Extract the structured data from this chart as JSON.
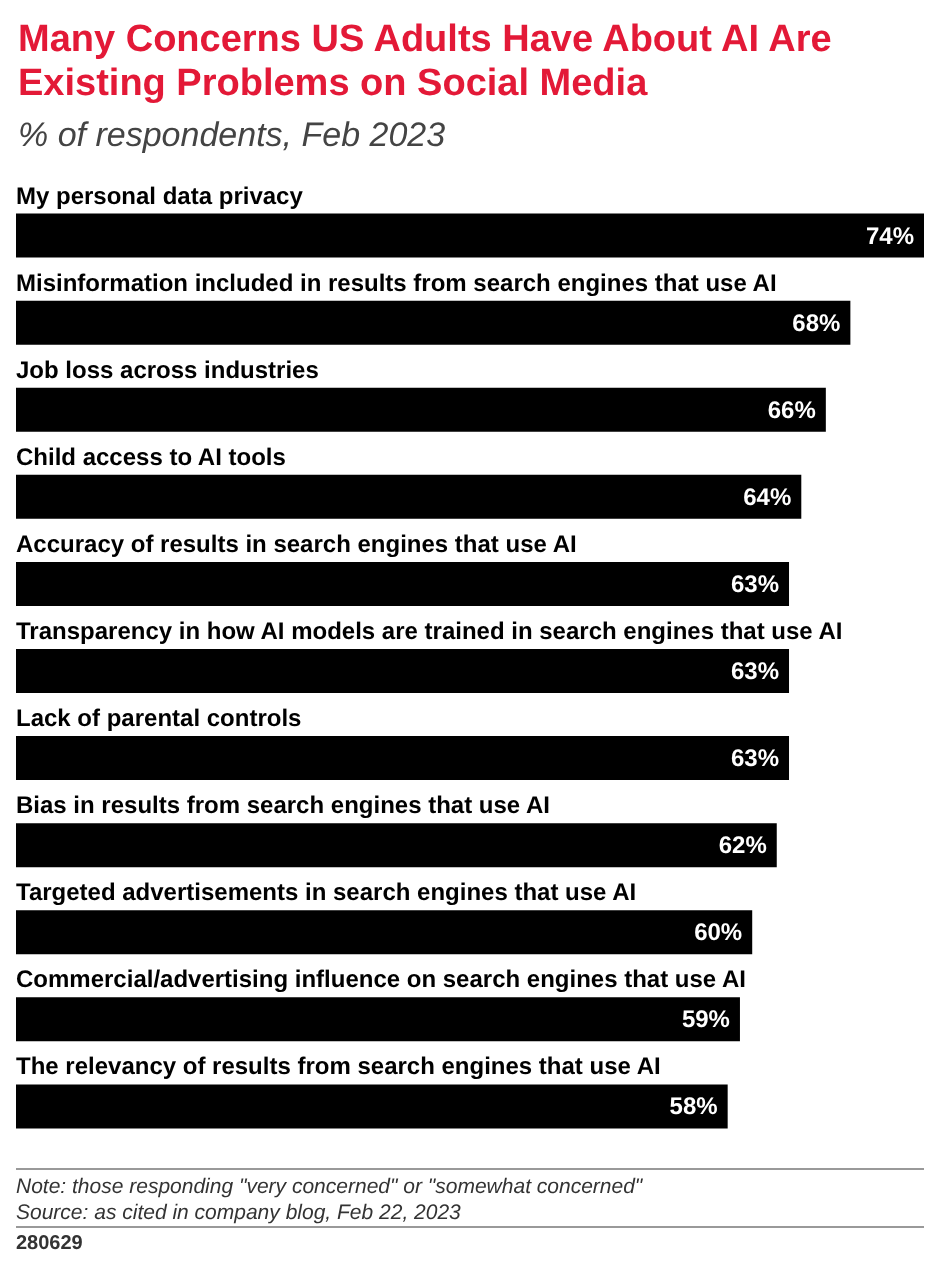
{
  "chart_data": {
    "type": "bar",
    "orientation": "horizontal",
    "title": "Many Concerns US Adults Have About AI Are Existing Problems on Social Media",
    "subtitle": "% of respondents, Feb 2023",
    "categories": [
      "My personal data privacy",
      "Misinformation included in results from search engines that use AI",
      "Job loss across industries",
      "Child access to AI tools",
      "Accuracy of results in search engines that use AI",
      "Transparency in how AI models are trained in search engines that use AI",
      "Lack of parental controls",
      "Bias in results from search engines that use AI",
      "Targeted advertisements in search engines that use AI",
      "Commercial/advertising influence on search engines that use AI",
      "The relevancy of results from search engines that use AI"
    ],
    "values": [
      74,
      68,
      66,
      64,
      63,
      63,
      63,
      62,
      60,
      59,
      58
    ],
    "value_labels": [
      "74%",
      "68%",
      "66%",
      "64%",
      "63%",
      "63%",
      "63%",
      "62%",
      "60%",
      "59%",
      "58%"
    ],
    "color": "#000000",
    "annotations": [
      "Note: those responding \"very concerned\" or \"somewhat concerned\"",
      "Source: as cited in company blog, Feb 22, 2023",
      "280629"
    ]
  }
}
